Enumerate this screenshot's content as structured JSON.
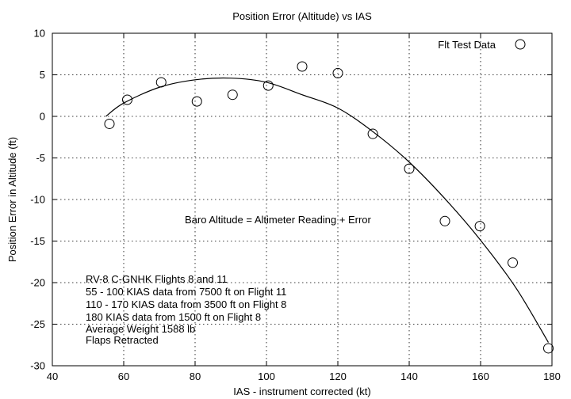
{
  "chart_data": {
    "type": "scatter",
    "title": "Position Error (Altitude) vs IAS",
    "xlabel": "IAS - instrument corrected (kt)",
    "ylabel": "Position Error in Altitude (ft)",
    "xlim": [
      40,
      180
    ],
    "ylim": [
      -30,
      10
    ],
    "x_ticks": [
      40,
      60,
      80,
      100,
      120,
      140,
      160,
      180
    ],
    "y_ticks": [
      -30,
      -25,
      -20,
      -15,
      -10,
      -5,
      0,
      5,
      10
    ],
    "grid": true,
    "legend": {
      "position": "top-right",
      "label": "Flt Test Data"
    },
    "series": [
      {
        "name": "Flt Test Data",
        "marker": "open-circle",
        "points": [
          {
            "x": 56,
            "y": -0.9
          },
          {
            "x": 61,
            "y": 2.0
          },
          {
            "x": 70.5,
            "y": 4.1
          },
          {
            "x": 80.5,
            "y": 1.8
          },
          {
            "x": 90.5,
            "y": 2.6
          },
          {
            "x": 100.5,
            "y": 3.7
          },
          {
            "x": 110,
            "y": 6.0
          },
          {
            "x": 120,
            "y": 5.2
          },
          {
            "x": 129.8,
            "y": -2.1
          },
          {
            "x": 140,
            "y": -6.3
          },
          {
            "x": 150,
            "y": -12.6
          },
          {
            "x": 159.8,
            "y": -13.2
          },
          {
            "x": 169,
            "y": -17.6
          },
          {
            "x": 179,
            "y": -27.9
          }
        ]
      }
    ],
    "fit_curve": [
      {
        "x": 55,
        "y": 0.0
      },
      {
        "x": 60,
        "y": 1.6
      },
      {
        "x": 70,
        "y": 3.5
      },
      {
        "x": 80,
        "y": 4.4
      },
      {
        "x": 90,
        "y": 4.6
      },
      {
        "x": 100,
        "y": 4.1
      },
      {
        "x": 110,
        "y": 2.6
      },
      {
        "x": 120,
        "y": 1.0
      },
      {
        "x": 130,
        "y": -1.9
      },
      {
        "x": 140,
        "y": -5.5
      },
      {
        "x": 150,
        "y": -9.9
      },
      {
        "x": 160,
        "y": -14.9
      },
      {
        "x": 170,
        "y": -20.7
      },
      {
        "x": 179,
        "y": -27.2
      }
    ],
    "annotations": [
      "Baro Altitude = Altimeter Reading + Error",
      "RV-8 C-GNHK Flights 8 and 11",
      "55 - 100 KIAS data from 7500 ft on Flight 11",
      "110 - 170 KIAS data from 3500 ft on Flight 8",
      "180 KIAS data from 1500 ft on Flight 8",
      "Average Weight 1588 lb",
      "Flaps Retracted"
    ]
  }
}
